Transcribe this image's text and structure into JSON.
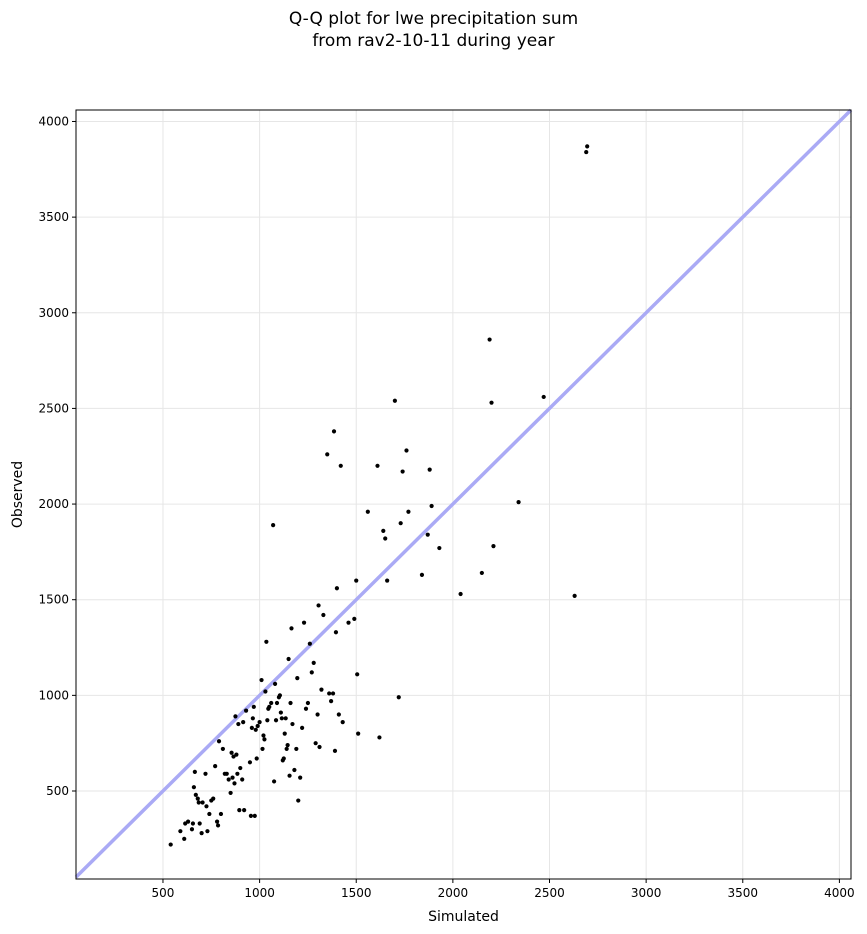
{
  "chart_data": {
    "type": "scatter",
    "title_line1": "Q-Q plot for lwe precipitation sum",
    "title_line2": "from rav2-10-11 during year",
    "xlabel": "Simulated",
    "ylabel": "Observed",
    "xlim": [
      50,
      4060
    ],
    "ylim": [
      40,
      4060
    ],
    "xticks": [
      500,
      1000,
      1500,
      2000,
      2500,
      3000,
      3500,
      4000
    ],
    "yticks": [
      500,
      1000,
      1500,
      2000,
      2500,
      3000,
      3500,
      4000
    ],
    "grid": true,
    "reference_line": {
      "from": [
        0,
        0
      ],
      "to": [
        4100,
        4100
      ],
      "color": "#aaaaf5"
    },
    "point_color": "#000000",
    "points": [
      [
        540,
        220
      ],
      [
        590,
        290
      ],
      [
        610,
        250
      ],
      [
        615,
        330
      ],
      [
        630,
        340
      ],
      [
        650,
        300
      ],
      [
        655,
        330
      ],
      [
        660,
        520
      ],
      [
        665,
        600
      ],
      [
        670,
        480
      ],
      [
        680,
        460
      ],
      [
        685,
        440
      ],
      [
        690,
        330
      ],
      [
        700,
        280
      ],
      [
        705,
        440
      ],
      [
        720,
        590
      ],
      [
        725,
        420
      ],
      [
        730,
        290
      ],
      [
        740,
        380
      ],
      [
        750,
        450
      ],
      [
        760,
        460
      ],
      [
        770,
        630
      ],
      [
        780,
        340
      ],
      [
        785,
        320
      ],
      [
        790,
        760
      ],
      [
        800,
        380
      ],
      [
        810,
        720
      ],
      [
        820,
        590
      ],
      [
        830,
        590
      ],
      [
        840,
        560
      ],
      [
        850,
        490
      ],
      [
        855,
        700
      ],
      [
        860,
        570
      ],
      [
        865,
        680
      ],
      [
        870,
        540
      ],
      [
        875,
        890
      ],
      [
        880,
        690
      ],
      [
        885,
        590
      ],
      [
        890,
        850
      ],
      [
        895,
        400
      ],
      [
        900,
        620
      ],
      [
        910,
        560
      ],
      [
        915,
        860
      ],
      [
        920,
        400
      ],
      [
        930,
        920
      ],
      [
        950,
        650
      ],
      [
        955,
        370
      ],
      [
        960,
        830
      ],
      [
        965,
        880
      ],
      [
        970,
        940
      ],
      [
        975,
        370
      ],
      [
        980,
        820
      ],
      [
        985,
        670
      ],
      [
        990,
        840
      ],
      [
        1000,
        860
      ],
      [
        1010,
        1080
      ],
      [
        1015,
        720
      ],
      [
        1020,
        790
      ],
      [
        1025,
        770
      ],
      [
        1030,
        1020
      ],
      [
        1035,
        1280
      ],
      [
        1040,
        870
      ],
      [
        1045,
        930
      ],
      [
        1050,
        940
      ],
      [
        1060,
        960
      ],
      [
        1070,
        1890
      ],
      [
        1075,
        550
      ],
      [
        1080,
        1060
      ],
      [
        1085,
        870
      ],
      [
        1090,
        960
      ],
      [
        1100,
        990
      ],
      [
        1105,
        1000
      ],
      [
        1110,
        910
      ],
      [
        1115,
        880
      ],
      [
        1120,
        660
      ],
      [
        1125,
        670
      ],
      [
        1130,
        800
      ],
      [
        1135,
        880
      ],
      [
        1140,
        720
      ],
      [
        1145,
        740
      ],
      [
        1150,
        1190
      ],
      [
        1155,
        580
      ],
      [
        1160,
        960
      ],
      [
        1165,
        1350
      ],
      [
        1170,
        850
      ],
      [
        1180,
        610
      ],
      [
        1190,
        720
      ],
      [
        1195,
        1090
      ],
      [
        1200,
        450
      ],
      [
        1210,
        570
      ],
      [
        1220,
        830
      ],
      [
        1230,
        1380
      ],
      [
        1240,
        930
      ],
      [
        1250,
        960
      ],
      [
        1260,
        1270
      ],
      [
        1270,
        1120
      ],
      [
        1280,
        1170
      ],
      [
        1290,
        750
      ],
      [
        1300,
        900
      ],
      [
        1305,
        1470
      ],
      [
        1310,
        730
      ],
      [
        1320,
        1030
      ],
      [
        1330,
        1420
      ],
      [
        1350,
        2260
      ],
      [
        1360,
        1010
      ],
      [
        1370,
        970
      ],
      [
        1380,
        1010
      ],
      [
        1385,
        2380
      ],
      [
        1390,
        710
      ],
      [
        1395,
        1330
      ],
      [
        1400,
        1560
      ],
      [
        1410,
        900
      ],
      [
        1420,
        2200
      ],
      [
        1430,
        860
      ],
      [
        1460,
        1380
      ],
      [
        1490,
        1400
      ],
      [
        1500,
        1600
      ],
      [
        1505,
        1110
      ],
      [
        1510,
        800
      ],
      [
        1560,
        1960
      ],
      [
        1610,
        2200
      ],
      [
        1620,
        780
      ],
      [
        1640,
        1860
      ],
      [
        1650,
        1820
      ],
      [
        1660,
        1600
      ],
      [
        1700,
        2540
      ],
      [
        1720,
        990
      ],
      [
        1730,
        1900
      ],
      [
        1740,
        2170
      ],
      [
        1760,
        2280
      ],
      [
        1770,
        1960
      ],
      [
        1840,
        1630
      ],
      [
        1870,
        1840
      ],
      [
        1880,
        2180
      ],
      [
        1890,
        1990
      ],
      [
        1930,
        1770
      ],
      [
        2040,
        1530
      ],
      [
        2150,
        1640
      ],
      [
        2190,
        2860
      ],
      [
        2200,
        2530
      ],
      [
        2210,
        1780
      ],
      [
        2340,
        2010
      ],
      [
        2470,
        2560
      ],
      [
        2630,
        1520
      ],
      [
        2690,
        3840
      ],
      [
        2695,
        3870
      ]
    ]
  }
}
